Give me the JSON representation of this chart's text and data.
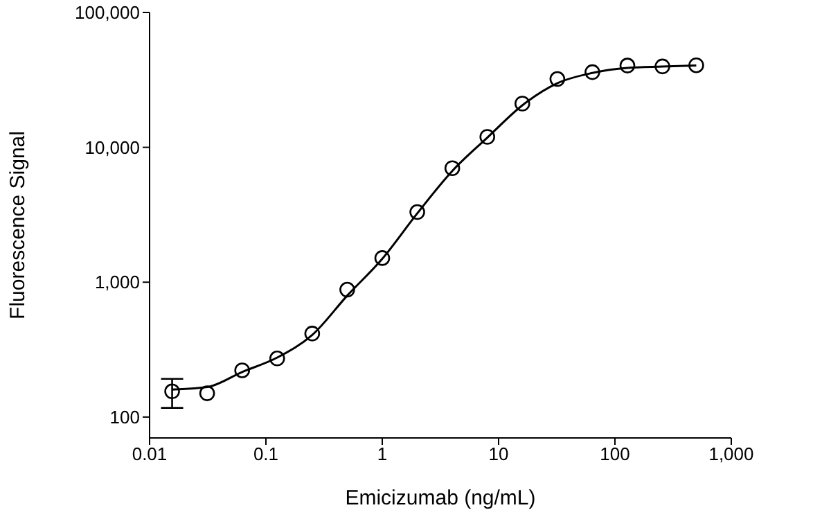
{
  "chart_data": {
    "type": "scatter",
    "xlabel": "Emicizumab (ng/mL)",
    "ylabel": "Fluorescence Signal",
    "log": "xy",
    "grid": false,
    "legend": false,
    "marker": "circle",
    "xlim": [
      0.01,
      1000
    ],
    "xticks": [
      0.01,
      0.1,
      1,
      10,
      100,
      {
        "value": 1000,
        "label": "1,000"
      }
    ],
    "ylim": [
      70,
      100000
    ],
    "yticks": [
      100,
      {
        "value": 1000,
        "label": "1,000"
      },
      {
        "value": 10000,
        "label": "10,000"
      },
      {
        "value": 100000,
        "label": "100,000"
      }
    ],
    "series": [
      {
        "color": "#000000",
        "x": [
          0.015625,
          0.03125,
          0.0625,
          0.125,
          0.25,
          0.5,
          1,
          2,
          4,
          8,
          16,
          32,
          64,
          128,
          256,
          500
        ],
        "values": [
          155,
          150,
          222,
          272,
          416,
          880,
          1510,
          3310,
          7000,
          11960,
          21100,
          32100,
          36100,
          40400,
          39800,
          40600
        ],
        "errors": [
          [
            117,
            192
          ],
          null,
          null,
          null,
          null,
          null,
          null,
          null,
          null,
          null,
          null,
          null,
          null,
          null,
          null,
          null
        ]
      },
      {
        "type": "line",
        "color": "#000000",
        "marker": "none",
        "line_style": "solid",
        "x": [
          0.015625,
          0.03125,
          0.0625,
          0.125,
          0.25,
          0.5,
          1,
          2,
          4,
          8,
          16,
          32,
          64,
          128,
          256,
          500
        ],
        "values": [
          160,
          167,
          216,
          276,
          406,
          795,
          1490,
          3240,
          6680,
          11800,
          20500,
          29900,
          35600,
          38800,
          39700,
          40400
        ]
      }
    ]
  }
}
